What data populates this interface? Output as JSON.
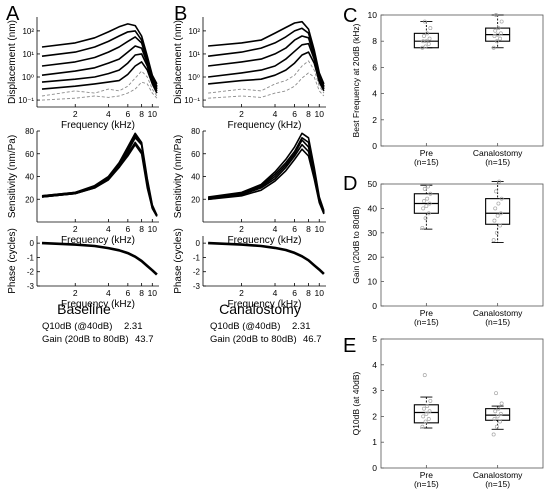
{
  "panel_letters": [
    "A",
    "B",
    "C",
    "D",
    "E"
  ],
  "colors": {
    "line": "#000000",
    "dash": "#8c8c8c",
    "point": "#a6a6a6",
    "axis": "#555555"
  },
  "chart_data": [
    {
      "id": "A-displacement",
      "type": "line",
      "panel": "A",
      "xlabel": "Frequency (kHz)",
      "ylabel": "Displacement (nm)",
      "xscale": "log",
      "yscale": "log",
      "xticks": [
        2,
        4,
        6,
        8,
        10
      ],
      "xticklabels": [
        "2",
        "4",
        "6",
        "8",
        "10"
      ],
      "yticks": [
        0.1,
        1,
        10,
        100
      ],
      "yticklabels": [
        "10⁻¹",
        "10⁰",
        "10¹",
        "10²"
      ],
      "series": [
        {
          "style": "solid",
          "x": [
            1,
            2,
            3,
            4,
            5,
            6,
            7,
            8,
            9,
            10,
            11
          ],
          "y": [
            20,
            30,
            50,
            90,
            150,
            200,
            170,
            60,
            8,
            1.2,
            0.5
          ]
        },
        {
          "style": "solid",
          "x": [
            1,
            2,
            3,
            4,
            5,
            6,
            7,
            8,
            9,
            10,
            11
          ],
          "y": [
            8,
            12,
            20,
            35,
            60,
            90,
            100,
            40,
            6,
            1,
            0.4
          ]
        },
        {
          "style": "solid",
          "x": [
            1,
            2,
            3,
            4,
            5,
            6,
            7,
            8,
            9,
            10,
            11
          ],
          "y": [
            3,
            4.5,
            7,
            12,
            20,
            35,
            55,
            30,
            5,
            0.9,
            0.35
          ]
        },
        {
          "style": "solid",
          "x": [
            1,
            2,
            3,
            4,
            5,
            6,
            7,
            8,
            9,
            10,
            11
          ],
          "y": [
            1.2,
            1.8,
            2.5,
            4,
            6,
            12,
            22,
            18,
            4,
            0.8,
            0.3
          ]
        },
        {
          "style": "solid",
          "x": [
            1,
            2,
            3,
            4,
            5,
            6,
            7,
            8,
            9,
            10,
            11
          ],
          "y": [
            0.6,
            0.8,
            1,
            1.4,
            2,
            4,
            9,
            10,
            3,
            0.6,
            0.25
          ]
        },
        {
          "style": "solid",
          "x": [
            1,
            2,
            3,
            4,
            5,
            6,
            7,
            8,
            9,
            10,
            11
          ],
          "y": [
            0.3,
            0.4,
            0.5,
            0.6,
            0.7,
            1.3,
            3,
            4.5,
            2,
            0.5,
            0.2
          ]
        },
        {
          "style": "dashed",
          "x": [
            1,
            2,
            3,
            4,
            5,
            6,
            7,
            8,
            9,
            10,
            11
          ],
          "y": [
            0.15,
            0.25,
            0.2,
            0.3,
            0.25,
            0.4,
            0.9,
            1.8,
            1,
            0.3,
            0.15
          ]
        },
        {
          "style": "dashed",
          "x": [
            1,
            2,
            3,
            4,
            5,
            6,
            7,
            8,
            9,
            10,
            11
          ],
          "y": [
            0.1,
            0.12,
            0.15,
            0.13,
            0.15,
            0.2,
            0.3,
            0.6,
            0.5,
            0.2,
            0.12
          ]
        }
      ]
    },
    {
      "id": "A-sensitivity",
      "type": "line",
      "panel": "A",
      "xlabel": "Frequency (kHz)",
      "ylabel": "Sensitivity (nm/Pa)",
      "xscale": "log",
      "yscale": "linear",
      "ylim": [
        0,
        80
      ],
      "xticks": [
        2,
        4,
        6,
        8,
        10
      ],
      "xticklabels": [
        "2",
        "4",
        "6",
        "8",
        "10"
      ],
      "yticks": [
        20,
        40,
        60,
        80
      ],
      "yticklabels": [
        "20",
        "40",
        "60",
        "80"
      ],
      "series": [
        {
          "style": "solid",
          "x": [
            1,
            2,
            3,
            4,
            5,
            6,
            7,
            8,
            9,
            10,
            11
          ],
          "y": [
            22,
            25,
            30,
            38,
            48,
            58,
            68,
            60,
            30,
            12,
            5
          ]
        },
        {
          "style": "solid",
          "x": [
            1,
            2,
            3,
            4,
            5,
            6,
            7,
            8,
            9,
            10,
            11
          ],
          "y": [
            23,
            26,
            31,
            39,
            50,
            62,
            74,
            68,
            35,
            14,
            6
          ]
        },
        {
          "style": "solid",
          "x": [
            1,
            2,
            3,
            4,
            5,
            6,
            7,
            8,
            9,
            10,
            11
          ],
          "y": [
            23,
            26,
            32,
            40,
            52,
            66,
            78,
            70,
            38,
            15,
            6
          ]
        },
        {
          "style": "solid",
          "x": [
            1,
            2,
            3,
            4,
            5,
            6,
            7,
            8,
            9,
            10,
            11
          ],
          "y": [
            22,
            25,
            31,
            39,
            51,
            64,
            76,
            68,
            36,
            14,
            5
          ]
        },
        {
          "style": "solid",
          "x": [
            1,
            2,
            3,
            4,
            5,
            6,
            7,
            8,
            9,
            10,
            11
          ],
          "y": [
            22,
            25,
            30,
            37,
            48,
            60,
            70,
            62,
            33,
            12,
            5
          ]
        }
      ]
    },
    {
      "id": "A-phase",
      "type": "line",
      "panel": "A",
      "xlabel": "Frequency (kHz)",
      "ylabel": "Phase (cycles)",
      "xscale": "log",
      "yscale": "linear",
      "ylim": [
        -3,
        0.5
      ],
      "xticks": [
        2,
        4,
        6,
        8,
        10
      ],
      "xticklabels": [
        "2",
        "4",
        "6",
        "8",
        "10"
      ],
      "yticks": [
        0,
        -1,
        -2,
        -3
      ],
      "yticklabels": [
        "0",
        "-1",
        "-2",
        "-3"
      ],
      "series": [
        {
          "style": "solid",
          "x": [
            1,
            2,
            3,
            4,
            5,
            6,
            7,
            8,
            9,
            10,
            11
          ],
          "y": [
            0,
            -0.1,
            -0.2,
            -0.35,
            -0.5,
            -0.7,
            -0.95,
            -1.25,
            -1.6,
            -1.9,
            -2.2
          ]
        }
      ]
    },
    {
      "id": "B-displacement",
      "type": "line",
      "panel": "B",
      "xlabel": "Frequency (kHz)",
      "ylabel": "Displacement (nm)",
      "xscale": "log",
      "yscale": "log",
      "xticks": [
        2,
        4,
        6,
        8,
        10
      ],
      "xticklabels": [
        "2",
        "4",
        "6",
        "8",
        "10"
      ],
      "yticks": [
        0.1,
        1,
        10,
        100
      ],
      "yticklabels": [
        "10⁻¹",
        "10⁰",
        "10¹",
        "10²"
      ],
      "series": [
        {
          "style": "solid",
          "x": [
            1,
            2,
            3,
            4,
            5,
            6,
            7,
            8,
            9,
            10,
            11
          ],
          "y": [
            22,
            30,
            40,
            80,
            140,
            220,
            250,
            120,
            15,
            1.5,
            0.5
          ]
        },
        {
          "style": "solid",
          "x": [
            1,
            2,
            3,
            4,
            5,
            6,
            7,
            8,
            9,
            10,
            11
          ],
          "y": [
            8,
            12,
            18,
            30,
            55,
            100,
            130,
            80,
            10,
            1.2,
            0.4
          ]
        },
        {
          "style": "solid",
          "x": [
            1,
            2,
            3,
            4,
            5,
            6,
            7,
            8,
            9,
            10,
            11
          ],
          "y": [
            3,
            4.5,
            6,
            10,
            18,
            40,
            60,
            50,
            8,
            1,
            0.35
          ]
        },
        {
          "style": "solid",
          "x": [
            1,
            2,
            3,
            4,
            5,
            6,
            7,
            8,
            9,
            10,
            11
          ],
          "y": [
            1,
            1.5,
            2,
            3,
            6,
            13,
            25,
            28,
            6,
            0.8,
            0.3
          ]
        },
        {
          "style": "solid",
          "x": [
            1,
            2,
            3,
            4,
            5,
            6,
            7,
            8,
            9,
            10,
            11
          ],
          "y": [
            0.5,
            0.7,
            0.8,
            1.2,
            2,
            4,
            9,
            12,
            4,
            0.6,
            0.25
          ]
        },
        {
          "style": "dashed",
          "x": [
            1,
            2,
            3,
            4,
            5,
            6,
            7,
            8,
            9,
            10,
            11
          ],
          "y": [
            0.2,
            0.3,
            0.25,
            0.5,
            0.7,
            1.2,
            3,
            5,
            2,
            0.4,
            0.2
          ]
        },
        {
          "style": "dashed",
          "x": [
            1,
            2,
            3,
            4,
            5,
            6,
            7,
            8,
            9,
            10,
            11
          ],
          "y": [
            0.12,
            0.15,
            0.13,
            0.2,
            0.25,
            0.4,
            0.9,
            1.5,
            1,
            0.25,
            0.15
          ]
        }
      ]
    },
    {
      "id": "B-sensitivity",
      "type": "line",
      "panel": "B",
      "xlabel": "Frequency (kHz)",
      "ylabel": "Sensitivity (nm/Pa)",
      "xscale": "log",
      "yscale": "linear",
      "ylim": [
        0,
        80
      ],
      "xticks": [
        2,
        4,
        6,
        8,
        10
      ],
      "xticklabels": [
        "2",
        "4",
        "6",
        "8",
        "10"
      ],
      "yticks": [
        20,
        40,
        60,
        80
      ],
      "yticklabels": [
        "20",
        "40",
        "60",
        "80"
      ],
      "series": [
        {
          "style": "solid",
          "x": [
            1,
            2,
            3,
            4,
            5,
            6,
            7,
            8,
            9,
            10,
            11
          ],
          "y": [
            20,
            24,
            30,
            38,
            48,
            58,
            68,
            62,
            40,
            18,
            8
          ]
        },
        {
          "style": "solid",
          "x": [
            1,
            2,
            3,
            4,
            5,
            6,
            7,
            8,
            9,
            10,
            11
          ],
          "y": [
            21,
            25,
            32,
            42,
            52,
            62,
            74,
            70,
            45,
            20,
            9
          ]
        },
        {
          "style": "solid",
          "x": [
            1,
            2,
            3,
            4,
            5,
            6,
            7,
            8,
            9,
            10,
            11
          ],
          "y": [
            22,
            26,
            33,
            44,
            55,
            66,
            78,
            74,
            48,
            22,
            10
          ]
        },
        {
          "style": "solid",
          "x": [
            1,
            2,
            3,
            4,
            5,
            6,
            7,
            8,
            9,
            10,
            11
          ],
          "y": [
            21,
            25,
            31,
            40,
            50,
            60,
            72,
            66,
            42,
            19,
            8
          ]
        },
        {
          "style": "solid",
          "x": [
            1,
            2,
            3,
            4,
            5,
            6,
            7,
            8,
            9,
            10,
            11
          ],
          "y": [
            20,
            23,
            28,
            36,
            45,
            55,
            64,
            58,
            38,
            17,
            7
          ]
        }
      ]
    },
    {
      "id": "B-phase",
      "type": "line",
      "panel": "B",
      "xlabel": "Frequency (kHz)",
      "ylabel": "Phase (cycles)",
      "xscale": "log",
      "yscale": "linear",
      "ylim": [
        -3,
        0.5
      ],
      "xticks": [
        2,
        4,
        6,
        8,
        10
      ],
      "xticklabels": [
        "2",
        "4",
        "6",
        "8",
        "10"
      ],
      "yticks": [
        0,
        -1,
        -2,
        -3
      ],
      "yticklabels": [
        "0",
        "-1",
        "-2",
        "-3"
      ],
      "series": [
        {
          "style": "solid",
          "x": [
            1,
            2,
            3,
            4,
            5,
            6,
            7,
            8,
            9,
            10,
            11
          ],
          "y": [
            0,
            -0.1,
            -0.2,
            -0.33,
            -0.48,
            -0.68,
            -0.92,
            -1.2,
            -1.55,
            -1.85,
            -2.15
          ]
        }
      ]
    },
    {
      "id": "C",
      "type": "box",
      "panel": "C",
      "ylabel": "Best Frequency at 20dB (kHz)",
      "ylim": [
        0,
        10
      ],
      "yticks": [
        0,
        2,
        4,
        6,
        8,
        10
      ],
      "yticklabels": [
        "0",
        "2",
        "4",
        "6",
        "8",
        "10"
      ],
      "categories": [
        "Pre\n(n=15)",
        "Canalostomy\n(n=15)"
      ],
      "boxes": [
        {
          "min": 7.5,
          "q1": 7.5,
          "median": 8.0,
          "q3": 8.6,
          "max": 9.5,
          "points": [
            7.5,
            7.6,
            7.8,
            8.0,
            8.0,
            8.2,
            8.4,
            8.6,
            9.0,
            9.5
          ]
        },
        {
          "min": 7.5,
          "q1": 8.0,
          "median": 8.5,
          "q3": 9.0,
          "max": 10.0,
          "points": [
            7.5,
            8.0,
            8.2,
            8.4,
            8.5,
            8.6,
            8.8,
            9.0,
            9.5,
            10.0
          ]
        }
      ]
    },
    {
      "id": "D",
      "type": "box",
      "panel": "D",
      "ylabel": "Gain (20dB to 80dB)",
      "ylim": [
        0,
        50
      ],
      "yticks": [
        0,
        10,
        20,
        30,
        40,
        50
      ],
      "yticklabels": [
        "0",
        "10",
        "20",
        "30",
        "40",
        "50"
      ],
      "categories": [
        "Pre\n(n=15)",
        "Canalostomy\n(n=15)"
      ],
      "boxes": [
        {
          "min": 31.5,
          "q1": 38,
          "median": 42,
          "q3": 46,
          "max": 49.5,
          "points": [
            32,
            36,
            38,
            40,
            41,
            42,
            43,
            44,
            46,
            48,
            49
          ]
        },
        {
          "min": 26,
          "q1": 33.5,
          "median": 38,
          "q3": 44,
          "max": 51,
          "points": [
            27,
            30,
            33,
            35,
            37,
            38,
            40,
            42,
            44,
            47,
            51
          ]
        }
      ]
    },
    {
      "id": "E",
      "type": "box",
      "panel": "E",
      "ylabel": "Q10dB (at 40dB)",
      "ylim": [
        0,
        5
      ],
      "yticks": [
        0,
        1,
        2,
        3,
        4,
        5
      ],
      "yticklabels": [
        "0",
        "1",
        "2",
        "3",
        "4",
        "5"
      ],
      "categories": [
        "Pre\n(n=15)",
        "Canalostomy\n(n=15)"
      ],
      "boxes": [
        {
          "min": 1.55,
          "q1": 1.75,
          "median": 2.15,
          "q3": 2.45,
          "max": 2.75,
          "points": [
            1.6,
            1.8,
            1.9,
            2.0,
            2.1,
            2.2,
            2.3,
            2.4,
            2.6,
            3.6
          ]
        },
        {
          "min": 1.5,
          "q1": 1.85,
          "median": 2.05,
          "q3": 2.3,
          "max": 2.4,
          "points": [
            1.3,
            1.6,
            1.8,
            1.9,
            2.0,
            2.1,
            2.2,
            2.3,
            2.5,
            2.9
          ]
        }
      ]
    }
  ],
  "condition_titles": {
    "A": "Baseline",
    "B": "Canalostomy"
  },
  "stats": {
    "A": {
      "q10_label": "Q10dB (@40dB)",
      "q10_value": "2.31",
      "gain_label": "Gain (20dB to 80dB)",
      "gain_value": "43.7"
    },
    "B": {
      "q10_label": "Q10dB (@40dB)",
      "q10_value": "2.31",
      "gain_label": "Gain (20dB to 80dB)",
      "gain_value": "46.7"
    }
  }
}
